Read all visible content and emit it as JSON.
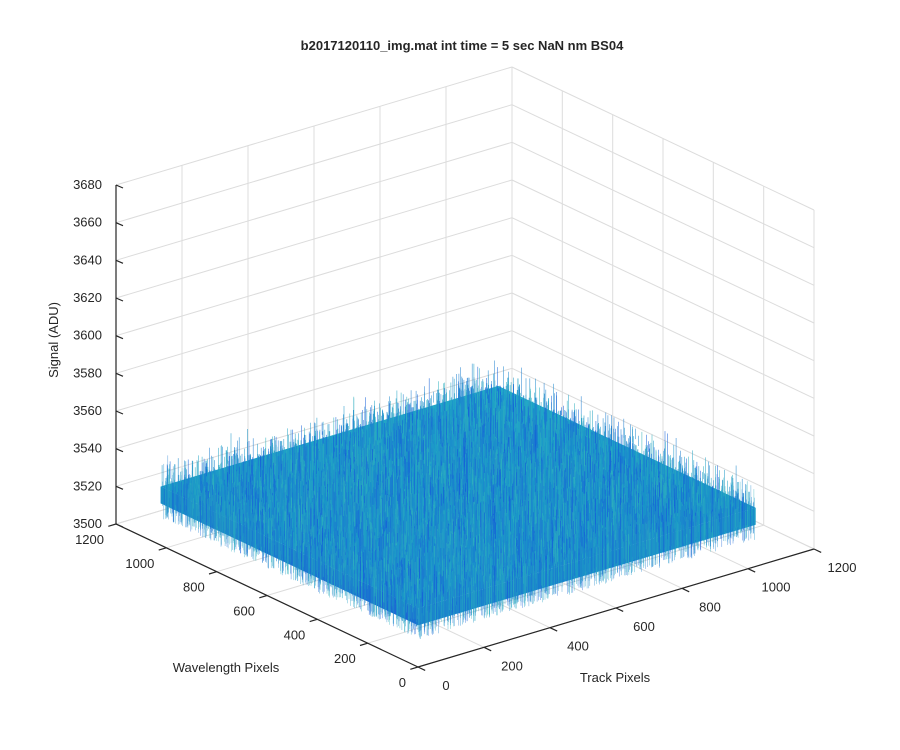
{
  "chart_data": {
    "type": "surface",
    "title": "b2017120110_img.mat int time = 5 sec  NaN nm BS04",
    "xlabel": "Track Pixels",
    "ylabel": "Wavelength Pixels",
    "zlabel": "Signal (ADU)",
    "xlim": [
      0,
      1200
    ],
    "ylim": [
      0,
      1200
    ],
    "zlim": [
      3500,
      3680
    ],
    "xticks": [
      0,
      200,
      400,
      600,
      800,
      1000,
      1200
    ],
    "yticks": [
      0,
      200,
      400,
      600,
      800,
      1000,
      1200
    ],
    "zticks": [
      3500,
      3520,
      3540,
      3560,
      3580,
      3600,
      3620,
      3640,
      3660,
      3680
    ],
    "data_extent": {
      "x": [
        1,
        1024
      ],
      "y": [
        1,
        1024
      ]
    },
    "signal": {
      "mean": 3530,
      "min_approx": 3500,
      "max_approx": 3625
    },
    "grid": true,
    "colormap": "parula",
    "colors": {
      "low": "#1f5fd6",
      "mid": "#1a9ac6",
      "high": "#c8d95a"
    }
  }
}
